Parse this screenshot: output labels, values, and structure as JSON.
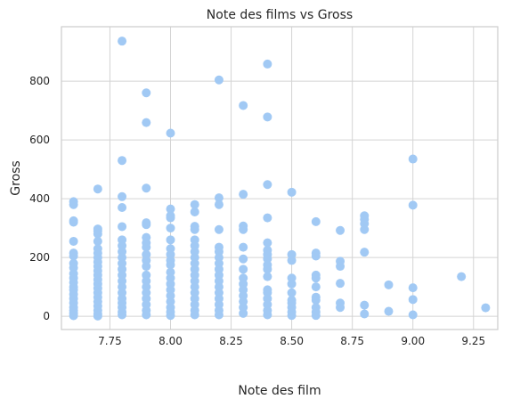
{
  "chart_data": {
    "type": "scatter",
    "title": "Note des films vs Gross",
    "xlabel": "Note des film",
    "ylabel": "Gross",
    "xlim": [
      7.55,
      9.35
    ],
    "ylim": [
      -45,
      985
    ],
    "xticks": [
      7.75,
      8.0,
      8.25,
      8.5,
      8.75,
      9.0,
      9.25
    ],
    "xtick_labels": [
      "7.75",
      "8.00",
      "8.25",
      "8.50",
      "8.75",
      "9.00",
      "9.25"
    ],
    "yticks": [
      0,
      200,
      400,
      600,
      800
    ],
    "ytick_labels": [
      "0",
      "200",
      "400",
      "600",
      "800"
    ],
    "grid": true,
    "marker_color": "#a1c9f4",
    "series": [
      {
        "points": [
          [
            7.6,
            390
          ],
          [
            7.6,
            380
          ],
          [
            7.6,
            325
          ],
          [
            7.6,
            320
          ],
          [
            7.6,
            255
          ],
          [
            7.6,
            215
          ],
          [
            7.6,
            205
          ],
          [
            7.6,
            180
          ],
          [
            7.6,
            165
          ],
          [
            7.6,
            145
          ],
          [
            7.6,
            130
          ],
          [
            7.6,
            115
          ],
          [
            7.6,
            100
          ],
          [
            7.6,
            90
          ],
          [
            7.6,
            75
          ],
          [
            7.6,
            60
          ],
          [
            7.6,
            45
          ],
          [
            7.6,
            30
          ],
          [
            7.6,
            20
          ],
          [
            7.6,
            10
          ],
          [
            7.6,
            2
          ],
          [
            7.7,
            433
          ],
          [
            7.7,
            297
          ],
          [
            7.7,
            290
          ],
          [
            7.7,
            280
          ],
          [
            7.7,
            255
          ],
          [
            7.7,
            230
          ],
          [
            7.7,
            215
          ],
          [
            7.7,
            200
          ],
          [
            7.7,
            185
          ],
          [
            7.7,
            170
          ],
          [
            7.7,
            155
          ],
          [
            7.7,
            140
          ],
          [
            7.7,
            125
          ],
          [
            7.7,
            110
          ],
          [
            7.7,
            95
          ],
          [
            7.7,
            80
          ],
          [
            7.7,
            65
          ],
          [
            7.7,
            50
          ],
          [
            7.7,
            35
          ],
          [
            7.7,
            20
          ],
          [
            7.7,
            8
          ],
          [
            7.7,
            1
          ],
          [
            7.8,
            936
          ],
          [
            7.8,
            530
          ],
          [
            7.8,
            407
          ],
          [
            7.8,
            370
          ],
          [
            7.8,
            305
          ],
          [
            7.8,
            260
          ],
          [
            7.8,
            240
          ],
          [
            7.8,
            220
          ],
          [
            7.8,
            200
          ],
          [
            7.8,
            180
          ],
          [
            7.8,
            160
          ],
          [
            7.8,
            140
          ],
          [
            7.8,
            120
          ],
          [
            7.8,
            100
          ],
          [
            7.8,
            80
          ],
          [
            7.8,
            60
          ],
          [
            7.8,
            45
          ],
          [
            7.8,
            30
          ],
          [
            7.8,
            15
          ],
          [
            7.8,
            5
          ],
          [
            7.9,
            760
          ],
          [
            7.9,
            659
          ],
          [
            7.9,
            436
          ],
          [
            7.9,
            318
          ],
          [
            7.9,
            312
          ],
          [
            7.9,
            268
          ],
          [
            7.9,
            250
          ],
          [
            7.9,
            235
          ],
          [
            7.9,
            210
          ],
          [
            7.9,
            190
          ],
          [
            7.9,
            170
          ],
          [
            7.9,
            140
          ],
          [
            7.9,
            120
          ],
          [
            7.9,
            100
          ],
          [
            7.9,
            80
          ],
          [
            7.9,
            60
          ],
          [
            7.9,
            40
          ],
          [
            7.9,
            20
          ],
          [
            7.9,
            5
          ],
          [
            8.0,
            623
          ],
          [
            8.0,
            365
          ],
          [
            8.0,
            342
          ],
          [
            8.0,
            335
          ],
          [
            8.0,
            300
          ],
          [
            8.0,
            260
          ],
          [
            8.0,
            230
          ],
          [
            8.0,
            210
          ],
          [
            8.0,
            190
          ],
          [
            8.0,
            175
          ],
          [
            8.0,
            150
          ],
          [
            8.0,
            130
          ],
          [
            8.0,
            110
          ],
          [
            8.0,
            90
          ],
          [
            8.0,
            70
          ],
          [
            8.0,
            50
          ],
          [
            8.0,
            30
          ],
          [
            8.0,
            15
          ],
          [
            8.0,
            3
          ],
          [
            8.1,
            380
          ],
          [
            8.1,
            355
          ],
          [
            8.1,
            306
          ],
          [
            8.1,
            295
          ],
          [
            8.1,
            260
          ],
          [
            8.1,
            240
          ],
          [
            8.1,
            220
          ],
          [
            8.1,
            200
          ],
          [
            8.1,
            180
          ],
          [
            8.1,
            160
          ],
          [
            8.1,
            140
          ],
          [
            8.1,
            120
          ],
          [
            8.1,
            100
          ],
          [
            8.1,
            80
          ],
          [
            8.1,
            60
          ],
          [
            8.1,
            40
          ],
          [
            8.1,
            20
          ],
          [
            8.1,
            5
          ],
          [
            8.2,
            804
          ],
          [
            8.2,
            403
          ],
          [
            8.2,
            380
          ],
          [
            8.2,
            295
          ],
          [
            8.2,
            235
          ],
          [
            8.2,
            220
          ],
          [
            8.2,
            200
          ],
          [
            8.2,
            180
          ],
          [
            8.2,
            160
          ],
          [
            8.2,
            140
          ],
          [
            8.2,
            120
          ],
          [
            8.2,
            100
          ],
          [
            8.2,
            80
          ],
          [
            8.2,
            60
          ],
          [
            8.2,
            40
          ],
          [
            8.2,
            20
          ],
          [
            8.2,
            5
          ],
          [
            8.3,
            717
          ],
          [
            8.3,
            415
          ],
          [
            8.3,
            307
          ],
          [
            8.3,
            295
          ],
          [
            8.3,
            235
          ],
          [
            8.3,
            195
          ],
          [
            8.3,
            160
          ],
          [
            8.3,
            130
          ],
          [
            8.3,
            110
          ],
          [
            8.3,
            90
          ],
          [
            8.3,
            70
          ],
          [
            8.3,
            50
          ],
          [
            8.3,
            30
          ],
          [
            8.3,
            10
          ],
          [
            8.4,
            858
          ],
          [
            8.4,
            678
          ],
          [
            8.4,
            448
          ],
          [
            8.4,
            335
          ],
          [
            8.4,
            250
          ],
          [
            8.4,
            225
          ],
          [
            8.4,
            210
          ],
          [
            8.4,
            195
          ],
          [
            8.4,
            175
          ],
          [
            8.4,
            160
          ],
          [
            8.4,
            135
          ],
          [
            8.4,
            90
          ],
          [
            8.4,
            80
          ],
          [
            8.4,
            60
          ],
          [
            8.4,
            40
          ],
          [
            8.4,
            20
          ],
          [
            8.4,
            5
          ],
          [
            8.5,
            422
          ],
          [
            8.5,
            210
          ],
          [
            8.5,
            190
          ],
          [
            8.5,
            130
          ],
          [
            8.5,
            110
          ],
          [
            8.5,
            80
          ],
          [
            8.5,
            55
          ],
          [
            8.5,
            45
          ],
          [
            8.5,
            30
          ],
          [
            8.5,
            15
          ],
          [
            8.5,
            3
          ],
          [
            8.6,
            322
          ],
          [
            8.6,
            215
          ],
          [
            8.6,
            205
          ],
          [
            8.6,
            140
          ],
          [
            8.6,
            130
          ],
          [
            8.6,
            100
          ],
          [
            8.6,
            65
          ],
          [
            8.6,
            55
          ],
          [
            8.6,
            30
          ],
          [
            8.6,
            15
          ],
          [
            8.6,
            3
          ],
          [
            8.7,
            292
          ],
          [
            8.7,
            187
          ],
          [
            8.7,
            170
          ],
          [
            8.7,
            112
          ],
          [
            8.7,
            45
          ],
          [
            8.7,
            30
          ],
          [
            8.8,
            342
          ],
          [
            8.8,
            330
          ],
          [
            8.8,
            315
          ],
          [
            8.8,
            295
          ],
          [
            8.8,
            218
          ],
          [
            8.8,
            38
          ],
          [
            8.8,
            8
          ],
          [
            8.9,
            107
          ],
          [
            8.9,
            17
          ],
          [
            9.0,
            535
          ],
          [
            9.0,
            378
          ],
          [
            9.0,
            97
          ],
          [
            9.0,
            57
          ],
          [
            9.0,
            5
          ],
          [
            9.2,
            135
          ],
          [
            9.3,
            29
          ]
        ]
      }
    ]
  }
}
